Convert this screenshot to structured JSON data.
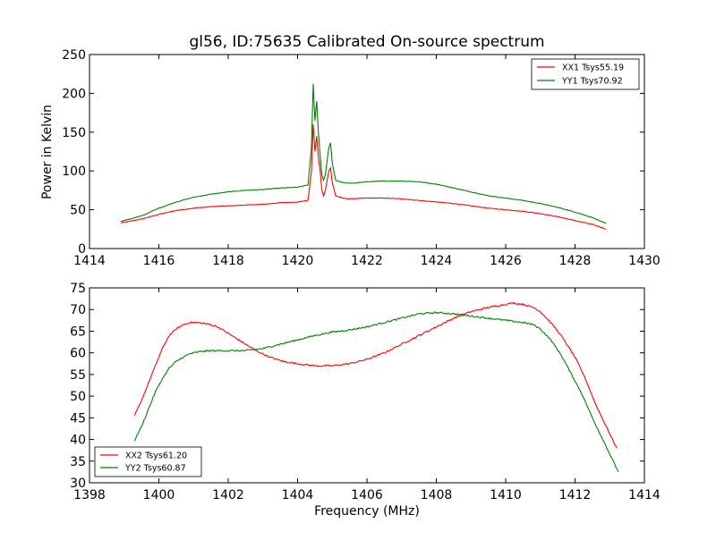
{
  "figure": {
    "title": "gl56, ID:75635 Calibrated On-source spectrum",
    "xlabel": "Frequency (MHz)"
  },
  "colors": {
    "series_1": "#ff0000",
    "series_2": "#008000",
    "axes": "#000000",
    "background": "#ffffff"
  },
  "chart_data": [
    {
      "type": "line",
      "title": "gl56, ID:75635 Calibrated On-source spectrum",
      "xlabel": "",
      "ylabel": "Power in Kelvin",
      "xlim": [
        1414,
        1430
      ],
      "ylim": [
        0,
        250
      ],
      "xticks": [
        "1414",
        "1416",
        "1418",
        "1420",
        "1422",
        "1424",
        "1426",
        "1428",
        "1430"
      ],
      "yticks": [
        "0",
        "50",
        "100",
        "150",
        "200",
        "250"
      ],
      "grid": false,
      "legend": "top-right",
      "series": [
        {
          "name": "XX1 Tsys55.19",
          "color": "#ff0000",
          "x": [
            1414.9,
            1415.5,
            1416,
            1416.5,
            1417,
            1417.5,
            1418,
            1418.5,
            1419,
            1419.5,
            1420,
            1420.3,
            1420.4,
            1420.45,
            1420.5,
            1420.55,
            1420.6,
            1420.65,
            1420.7,
            1420.75,
            1420.8,
            1420.9,
            1420.95,
            1421,
            1421.1,
            1421.3,
            1421.5,
            1422,
            1422.5,
            1423,
            1423.5,
            1424,
            1424.5,
            1425,
            1425.5,
            1426,
            1426.5,
            1427,
            1427.5,
            1428,
            1428.5,
            1428.9
          ],
          "y": [
            33,
            38,
            44,
            49,
            52,
            54,
            55,
            56,
            57,
            59,
            60,
            62,
            100,
            160,
            125,
            145,
            118,
            100,
            75,
            68,
            75,
            100,
            104,
            85,
            68,
            65,
            64,
            65,
            65,
            64,
            62,
            60,
            58,
            55,
            52,
            50,
            48,
            45,
            41,
            36,
            31,
            25
          ]
        },
        {
          "name": "YY1 Tsys70.92",
          "color": "#008000",
          "x": [
            1414.9,
            1415.5,
            1416,
            1416.5,
            1417,
            1417.5,
            1418,
            1418.5,
            1419,
            1419.5,
            1420,
            1420.3,
            1420.4,
            1420.45,
            1420.5,
            1420.55,
            1420.6,
            1420.65,
            1420.7,
            1420.75,
            1420.8,
            1420.9,
            1420.95,
            1421,
            1421.1,
            1421.3,
            1421.5,
            1422,
            1422.5,
            1423,
            1423.5,
            1424,
            1424.5,
            1425,
            1425.5,
            1426,
            1426.5,
            1427,
            1427.5,
            1428,
            1428.5,
            1428.9
          ],
          "y": [
            35,
            42,
            52,
            60,
            66,
            70,
            73,
            75,
            76,
            78,
            79,
            82,
            130,
            212,
            165,
            190,
            150,
            120,
            95,
            88,
            95,
            130,
            136,
            110,
            88,
            85,
            84,
            86,
            87,
            87,
            86,
            83,
            78,
            73,
            68,
            65,
            62,
            58,
            53,
            47,
            40,
            32
          ]
        }
      ]
    },
    {
      "type": "line",
      "title": "",
      "xlabel": "Frequency (MHz)",
      "ylabel": "",
      "xlim": [
        1398,
        1414
      ],
      "ylim": [
        30,
        75
      ],
      "xticks": [
        "1398",
        "1400",
        "1402",
        "1404",
        "1406",
        "1408",
        "1410",
        "1412",
        "1414"
      ],
      "yticks": [
        "30",
        "35",
        "40",
        "45",
        "50",
        "55",
        "60",
        "65",
        "70",
        "75"
      ],
      "grid": false,
      "legend": "bottom-left",
      "series": [
        {
          "name": "XX2 Tsys61.20",
          "color": "#ff0000",
          "x": [
            1399.3,
            1399.5,
            1399.7,
            1399.9,
            1400.1,
            1400.3,
            1400.5,
            1400.7,
            1400.9,
            1401.1,
            1401.3,
            1401.5,
            1401.7,
            1401.9,
            1402.2,
            1402.5,
            1402.8,
            1403.2,
            1403.6,
            1404,
            1404.5,
            1405,
            1405.5,
            1406,
            1406.5,
            1407,
            1407.5,
            1408,
            1408.5,
            1409,
            1409.5,
            1410,
            1410.2,
            1410.5,
            1410.8,
            1411,
            1411.3,
            1411.6,
            1412,
            1412.3,
            1412.6,
            1412.9,
            1413.2
          ],
          "y": [
            45.5,
            49,
            53,
            57,
            61,
            64,
            65.5,
            66.5,
            67,
            67,
            66.8,
            66.5,
            66,
            65,
            63.5,
            62,
            60.5,
            59,
            58,
            57.5,
            57,
            57,
            57.5,
            58.5,
            60,
            62,
            64,
            66,
            68,
            69.5,
            70.5,
            71.2,
            71.5,
            71.2,
            70.5,
            69.5,
            67,
            64,
            59,
            54,
            48,
            43,
            38
          ]
        },
        {
          "name": "YY2 Tsys60.87",
          "color": "#008000",
          "x": [
            1399.3,
            1399.5,
            1399.7,
            1399.9,
            1400.1,
            1400.3,
            1400.5,
            1400.7,
            1400.9,
            1401.2,
            1401.5,
            1402,
            1402.5,
            1403,
            1403.5,
            1404,
            1404.5,
            1405,
            1405.5,
            1406,
            1406.5,
            1407,
            1407.5,
            1408,
            1408.5,
            1409,
            1409.5,
            1410,
            1410.5,
            1410.8,
            1411,
            1411.3,
            1411.6,
            1411.9,
            1412.2,
            1412.5,
            1412.8,
            1413.1,
            1413.25
          ],
          "y": [
            39.8,
            43,
            47,
            51,
            54,
            56.5,
            58,
            59,
            59.8,
            60.3,
            60.5,
            60.5,
            60.5,
            61,
            62,
            63,
            64,
            64.8,
            65.3,
            66,
            67,
            68,
            69,
            69.3,
            69,
            68.5,
            68,
            67.5,
            67,
            66.5,
            65.5,
            63,
            59.5,
            55,
            50.5,
            45,
            40,
            35,
            32.5
          ]
        }
      ]
    }
  ]
}
